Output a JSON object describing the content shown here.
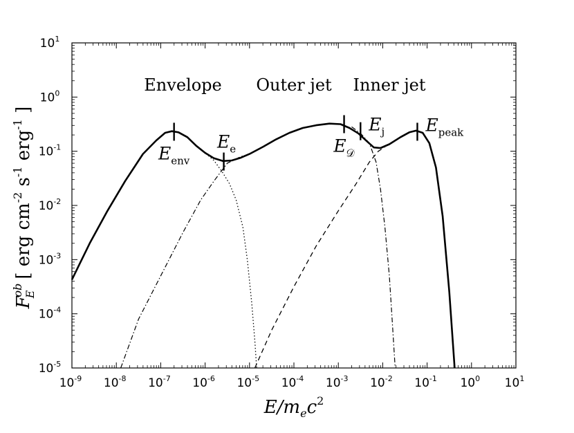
{
  "chart_data": {
    "type": "line",
    "title": "",
    "xlabel": {
      "main": "E/m",
      "sub": "e",
      "tail": "c",
      "sup": "2"
    },
    "ylabel": {
      "symbol": "F",
      "sub": "E",
      "sup": "ob",
      "units": "[ erg cm",
      "units_exp1": "-2",
      "units_mid": " s",
      "units_exp2": "-1",
      "units_mid2": " erg",
      "units_exp3": "-1",
      "units_close": " ]"
    },
    "xscale": "log",
    "yscale": "log",
    "xlim_exp": [
      -9,
      1
    ],
    "ylim_exp": [
      -5,
      1
    ],
    "x_ticks": [
      {
        "base": "10",
        "exp": "-9"
      },
      {
        "base": "10",
        "exp": "-8"
      },
      {
        "base": "10",
        "exp": "-7"
      },
      {
        "base": "10",
        "exp": "-6"
      },
      {
        "base": "10",
        "exp": "-5"
      },
      {
        "base": "10",
        "exp": "-4"
      },
      {
        "base": "10",
        "exp": "-3"
      },
      {
        "base": "10",
        "exp": "-2"
      },
      {
        "base": "10",
        "exp": "-1"
      },
      {
        "base": "10",
        "exp": "0"
      },
      {
        "base": "10",
        "exp": "1"
      }
    ],
    "y_ticks": [
      {
        "base": "10",
        "exp": "-5"
      },
      {
        "base": "10",
        "exp": "-4"
      },
      {
        "base": "10",
        "exp": "-3"
      },
      {
        "base": "10",
        "exp": "-2"
      },
      {
        "base": "10",
        "exp": "-1"
      },
      {
        "base": "10",
        "exp": "0"
      },
      {
        "base": "10",
        "exp": "1"
      }
    ],
    "regions": [
      {
        "label": "Envelope",
        "x_exp": -6.5
      },
      {
        "label": "Outer jet",
        "x_exp": -4
      },
      {
        "label": "Inner jet",
        "x_exp": -1.85
      }
    ],
    "markers": [
      {
        "main": "E",
        "sub": "env",
        "x_exp": -6.7,
        "y_exp": -0.64,
        "label_pos": "below"
      },
      {
        "main": "E",
        "sub": "e",
        "x_exp": -5.58,
        "y_exp": -1.19,
        "label_pos": "above"
      },
      {
        "main": "E",
        "sub": "𝒟",
        "x_exp": -2.87,
        "y_exp": -0.5,
        "label_pos": "below"
      },
      {
        "main": "E",
        "sub": "j",
        "x_exp": -2.5,
        "y_exp": -0.63,
        "label_pos": "right"
      },
      {
        "main": "E",
        "sub": "peak",
        "x_exp": -1.22,
        "y_exp": -0.64,
        "label_pos": "right"
      }
    ],
    "series": [
      {
        "name": "total",
        "style": "solid",
        "points_log": [
          [
            -9.0,
            -3.37
          ],
          [
            -8.6,
            -2.7
          ],
          [
            -8.2,
            -2.1
          ],
          [
            -7.8,
            -1.55
          ],
          [
            -7.4,
            -1.05
          ],
          [
            -7.1,
            -0.8
          ],
          [
            -6.9,
            -0.66
          ],
          [
            -6.75,
            -0.63
          ],
          [
            -6.6,
            -0.65
          ],
          [
            -6.4,
            -0.74
          ],
          [
            -6.2,
            -0.9
          ],
          [
            -6.0,
            -1.03
          ],
          [
            -5.8,
            -1.13
          ],
          [
            -5.6,
            -1.18
          ],
          [
            -5.4,
            -1.17
          ],
          [
            -5.2,
            -1.12
          ],
          [
            -5.0,
            -1.05
          ],
          [
            -4.7,
            -0.92
          ],
          [
            -4.4,
            -0.78
          ],
          [
            -4.1,
            -0.66
          ],
          [
            -3.8,
            -0.57
          ],
          [
            -3.5,
            -0.52
          ],
          [
            -3.2,
            -0.49
          ],
          [
            -2.95,
            -0.5
          ],
          [
            -2.75,
            -0.57
          ],
          [
            -2.55,
            -0.67
          ],
          [
            -2.35,
            -0.82
          ],
          [
            -2.2,
            -0.93
          ],
          [
            -2.05,
            -0.94
          ],
          [
            -1.85,
            -0.87
          ],
          [
            -1.6,
            -0.74
          ],
          [
            -1.4,
            -0.65
          ],
          [
            -1.25,
            -0.62
          ],
          [
            -1.1,
            -0.66
          ],
          [
            -0.95,
            -0.85
          ],
          [
            -0.8,
            -1.3
          ],
          [
            -0.65,
            -2.2
          ],
          [
            -0.5,
            -3.6
          ],
          [
            -0.38,
            -5.0
          ]
        ]
      },
      {
        "name": "envelope",
        "style": "dotted",
        "points_log": [
          [
            -6.2,
            -0.9
          ],
          [
            -6.0,
            -1.03
          ],
          [
            -5.8,
            -1.17
          ],
          [
            -5.6,
            -1.4
          ],
          [
            -5.45,
            -1.6
          ],
          [
            -5.3,
            -1.9
          ],
          [
            -5.15,
            -2.4
          ],
          [
            -5.05,
            -3.0
          ],
          [
            -4.95,
            -3.8
          ],
          [
            -4.88,
            -4.5
          ],
          [
            -4.84,
            -5.0
          ]
        ]
      },
      {
        "name": "outer-jet",
        "style": "dashdot",
        "points_log": [
          [
            -7.9,
            -5.0
          ],
          [
            -7.5,
            -4.1
          ],
          [
            -7.0,
            -3.3
          ],
          [
            -6.5,
            -2.5
          ],
          [
            -6.1,
            -1.9
          ],
          [
            -5.8,
            -1.55
          ],
          [
            -5.5,
            -1.22
          ],
          [
            -5.2,
            -1.1
          ],
          [
            -5.0,
            -1.05
          ]
        ]
      },
      {
        "name": "outer-jet-tail",
        "style": "dashdot",
        "points_log": [
          [
            -2.7,
            -0.55
          ],
          [
            -2.5,
            -0.67
          ],
          [
            -2.3,
            -0.85
          ],
          [
            -2.15,
            -1.2
          ],
          [
            -2.05,
            -1.7
          ],
          [
            -1.95,
            -2.4
          ],
          [
            -1.85,
            -3.3
          ],
          [
            -1.78,
            -4.2
          ],
          [
            -1.72,
            -5.0
          ]
        ]
      },
      {
        "name": "inner-jet",
        "style": "dashed",
        "points_log": [
          [
            -4.88,
            -5.0
          ],
          [
            -4.5,
            -4.3
          ],
          [
            -4.0,
            -3.5
          ],
          [
            -3.5,
            -2.75
          ],
          [
            -3.0,
            -2.1
          ],
          [
            -2.6,
            -1.6
          ],
          [
            -2.3,
            -1.2
          ],
          [
            -2.1,
            -1.0
          ],
          [
            -1.95,
            -0.92
          ]
        ]
      }
    ]
  }
}
